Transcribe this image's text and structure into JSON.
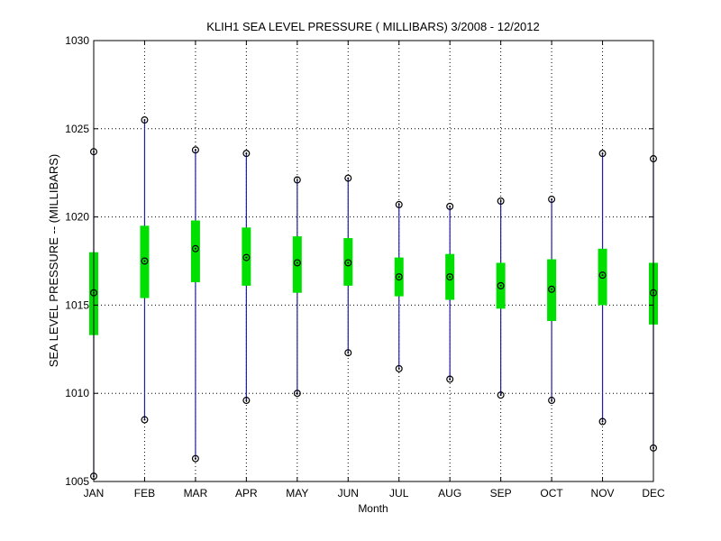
{
  "chart_data": {
    "type": "boxplot",
    "title": "KLIH1  SEA LEVEL PRESSURE ( MILLIBARS) 3/2008 - 12/2012",
    "xlabel": "Month",
    "ylabel": "SEA LEVEL PRESSURE -- (MILLIBARS)",
    "ylim": [
      1005,
      1030
    ],
    "yticks": [
      "1005",
      "1010",
      "1015",
      "1020",
      "1025",
      "1030"
    ],
    "grid": true,
    "colors": {
      "whisker": "#1f1f9e",
      "box": "#00e000",
      "marker": "#000000"
    },
    "categories": [
      "JAN",
      "FEB",
      "MAR",
      "APR",
      "MAY",
      "JUN",
      "JUL",
      "AUG",
      "SEP",
      "OCT",
      "NOV",
      "DEC"
    ],
    "series": [
      {
        "min": [
          1005.3,
          1008.5,
          1006.3,
          1009.6,
          1010.0,
          1012.3,
          1011.4,
          1010.8,
          1009.9,
          1009.6,
          1008.4,
          1006.9
        ]
      },
      {
        "q1": [
          1013.3,
          1015.4,
          1016.3,
          1016.1,
          1015.7,
          1016.1,
          1015.5,
          1015.3,
          1014.8,
          1014.1,
          1015.0,
          1013.9
        ]
      },
      {
        "mean": [
          1015.7,
          1017.5,
          1018.2,
          1017.7,
          1017.4,
          1017.4,
          1016.6,
          1016.6,
          1016.1,
          1015.9,
          1016.7,
          1015.7
        ]
      },
      {
        "q3": [
          1018.0,
          1019.5,
          1019.8,
          1019.4,
          1018.9,
          1018.8,
          1017.7,
          1017.9,
          1017.4,
          1017.6,
          1018.2,
          1017.4
        ]
      },
      {
        "max": [
          1023.7,
          1025.5,
          1023.8,
          1023.6,
          1022.1,
          1022.2,
          1020.7,
          1020.6,
          1020.9,
          1021.0,
          1023.6,
          1023.3
        ]
      }
    ]
  }
}
